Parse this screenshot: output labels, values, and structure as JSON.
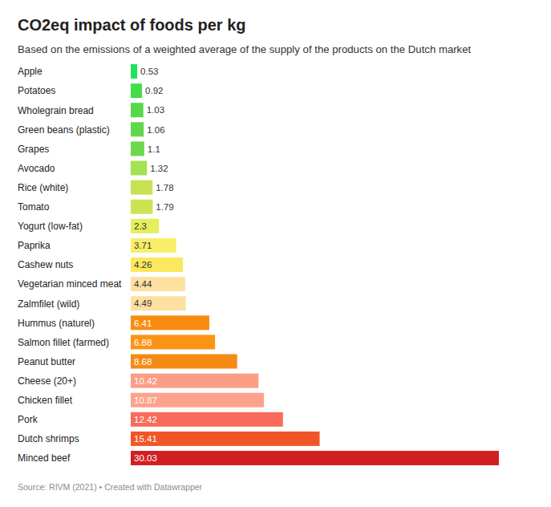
{
  "chart_data": {
    "type": "bar",
    "title": "CO2eq impact of foods per kg",
    "subtitle": "Based on the emissions of a weighted average of the supply of the products on the Dutch market",
    "source": "Source: RIVM (2021) • Created with Datawrapper",
    "orientation": "horizontal",
    "categories": [
      "Apple",
      "Potatoes",
      "Wholegrain bread",
      "Green beans (plastic)",
      "Grapes",
      "Avocado",
      "Rice (white)",
      "Tomato",
      "Yogurt (low-fat)",
      "Paprika",
      "Cashew nuts",
      "Vegetarian minced meat",
      "Zalmfilet (wild)",
      "Hummus (naturel)",
      "Salmon fillet (farmed)",
      "Peanut butter",
      "Cheese (20+)",
      "Chicken fillet",
      "Pork",
      "Dutch shrimps",
      "Minced beef"
    ],
    "values": [
      0.53,
      0.92,
      1.03,
      1.06,
      1.1,
      1.32,
      1.78,
      1.79,
      2.3,
      3.71,
      4.26,
      4.44,
      4.49,
      6.41,
      6.88,
      8.68,
      10.42,
      10.87,
      12.42,
      15.41,
      30.03
    ],
    "colors": [
      "#1fe35f",
      "#45db4c",
      "#55d84b",
      "#60d84b",
      "#6cd94d",
      "#a4e24f",
      "#c6e250",
      "#cde452",
      "#e6ee5a",
      "#f8ee6a",
      "#fbe85e",
      "#fde0a0",
      "#fde0a0",
      "#f98c10",
      "#fb9416",
      "#f58a14",
      "#fc9d85",
      "#fca28b",
      "#f96b5a",
      "#f15527",
      "#d21f22"
    ],
    "xlim": [
      0,
      30.03
    ],
    "data_labels": true,
    "tick_labels": "y",
    "grid": false
  }
}
